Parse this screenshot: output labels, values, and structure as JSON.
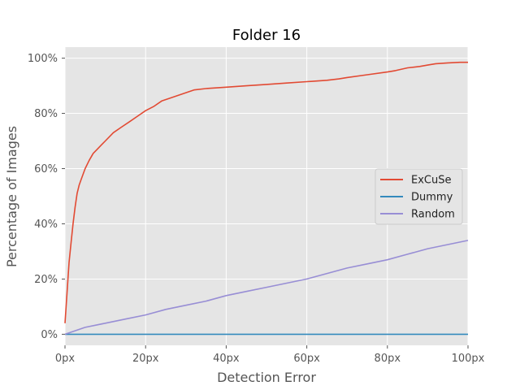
{
  "chart_data": {
    "type": "line",
    "title": "Folder 16",
    "xlabel": "Detection Error",
    "ylabel": "Percentage of Images",
    "xlim": [
      0,
      100
    ],
    "ylim": [
      -4,
      104
    ],
    "x_ticks": [
      0,
      20,
      40,
      60,
      80,
      100
    ],
    "x_tick_labels": [
      "0px",
      "20px",
      "40px",
      "60px",
      "80px",
      "100px"
    ],
    "y_ticks": [
      0,
      20,
      40,
      60,
      80,
      100
    ],
    "y_tick_labels": [
      "0%",
      "20%",
      "40%",
      "60%",
      "80%",
      "100%"
    ],
    "grid": true,
    "legend_position": "center-right",
    "series": [
      {
        "name": "ExCuSe",
        "color": "#E24A33",
        "x": [
          0,
          0.5,
          1,
          1.5,
          2,
          2.5,
          3,
          3.5,
          4,
          5,
          6,
          7,
          8,
          9,
          10,
          12,
          14,
          16,
          18,
          20,
          22,
          24,
          26,
          28,
          30,
          32,
          35,
          40,
          45,
          50,
          55,
          60,
          65,
          68,
          70,
          75,
          80,
          82,
          85,
          88,
          90,
          92,
          95,
          98,
          100
        ],
        "y": [
          4,
          15,
          26,
          33,
          40,
          46,
          51,
          54,
          56,
          60,
          63,
          65.5,
          67,
          68.5,
          70,
          73,
          75,
          77,
          79,
          81,
          82.5,
          84.5,
          85.5,
          86.5,
          87.5,
          88.5,
          89,
          89.5,
          90,
          90.5,
          91,
          91.5,
          92,
          92.5,
          93,
          94,
          95,
          95.5,
          96.5,
          97,
          97.5,
          98,
          98.3,
          98.5,
          98.5
        ]
      },
      {
        "name": "Dummy",
        "color": "#348ABD",
        "x": [
          0,
          100
        ],
        "y": [
          0,
          0
        ]
      },
      {
        "name": "Random",
        "color": "#988ED5",
        "x": [
          0,
          5,
          10,
          15,
          20,
          25,
          30,
          35,
          40,
          45,
          50,
          55,
          60,
          65,
          70,
          75,
          80,
          85,
          90,
          95,
          100
        ],
        "y": [
          0,
          2.5,
          4,
          5.5,
          7,
          9,
          10.5,
          12,
          14,
          15.5,
          17,
          18.5,
          20,
          22,
          24,
          25.5,
          27,
          29,
          31,
          32.5,
          34
        ]
      }
    ]
  }
}
